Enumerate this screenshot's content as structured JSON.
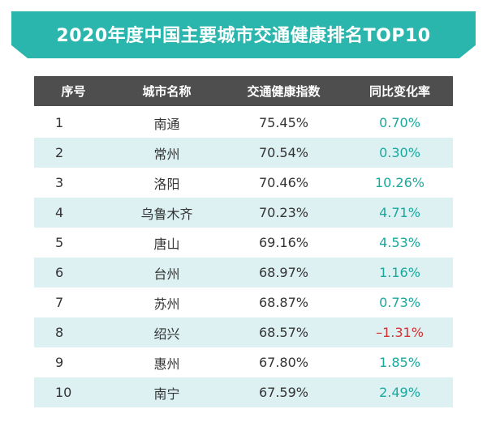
{
  "title": "2020年度中国主要城市交通健康排名TOP10",
  "colors": {
    "banner": "#2bb6ad",
    "header_bg": "#4e4e4e",
    "row_alt": "#ddf1f3",
    "positive": "#1aa89c",
    "negative": "#d63031"
  },
  "table": {
    "headers": [
      "序号",
      "城市名称",
      "交通健康指数",
      "同比变化率"
    ],
    "rows": [
      {
        "rank": "1",
        "city": "南通",
        "index": "75.45%",
        "change": "0.70%",
        "trend": "pos"
      },
      {
        "rank": "2",
        "city": "常州",
        "index": "70.54%",
        "change": "0.30%",
        "trend": "pos"
      },
      {
        "rank": "3",
        "city": "洛阳",
        "index": "70.46%",
        "change": "10.26%",
        "trend": "pos"
      },
      {
        "rank": "4",
        "city": "乌鲁木齐",
        "index": "70.23%",
        "change": "4.71%",
        "trend": "pos"
      },
      {
        "rank": "5",
        "city": "唐山",
        "index": "69.16%",
        "change": "4.53%",
        "trend": "pos"
      },
      {
        "rank": "6",
        "city": "台州",
        "index": "68.97%",
        "change": "1.16%",
        "trend": "pos"
      },
      {
        "rank": "7",
        "city": "苏州",
        "index": "68.87%",
        "change": "0.73%",
        "trend": "pos"
      },
      {
        "rank": "8",
        "city": "绍兴",
        "index": "68.57%",
        "change": "–1.31%",
        "trend": "neg"
      },
      {
        "rank": "9",
        "city": "惠州",
        "index": "67.80%",
        "change": "1.85%",
        "trend": "pos"
      },
      {
        "rank": "10",
        "city": "南宁",
        "index": "67.59%",
        "change": "2.49%",
        "trend": "pos"
      }
    ]
  }
}
